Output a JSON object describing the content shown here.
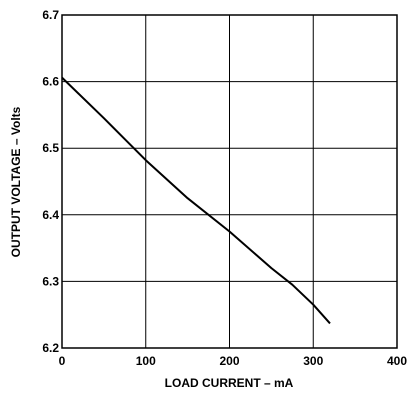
{
  "chart_data": {
    "type": "line",
    "title": "",
    "xlabel": "LOAD CURRENT – mA",
    "ylabel": "OUTPUT VOLTAGE – Volts",
    "xlim": [
      0,
      400
    ],
    "ylim": [
      6.2,
      6.7
    ],
    "xticks": [
      "0",
      "100",
      "200",
      "300",
      "400"
    ],
    "yticks": [
      "6.2",
      "6.3",
      "6.4",
      "6.5",
      "6.6",
      "6.7"
    ],
    "grid": true,
    "legend": "none",
    "series": [
      {
        "x": [
          0,
          50,
          100,
          150,
          200,
          250,
          275,
          300,
          320
        ],
        "y": [
          6.606,
          6.545,
          6.482,
          6.425,
          6.375,
          6.32,
          6.295,
          6.265,
          6.237
        ]
      }
    ]
  }
}
